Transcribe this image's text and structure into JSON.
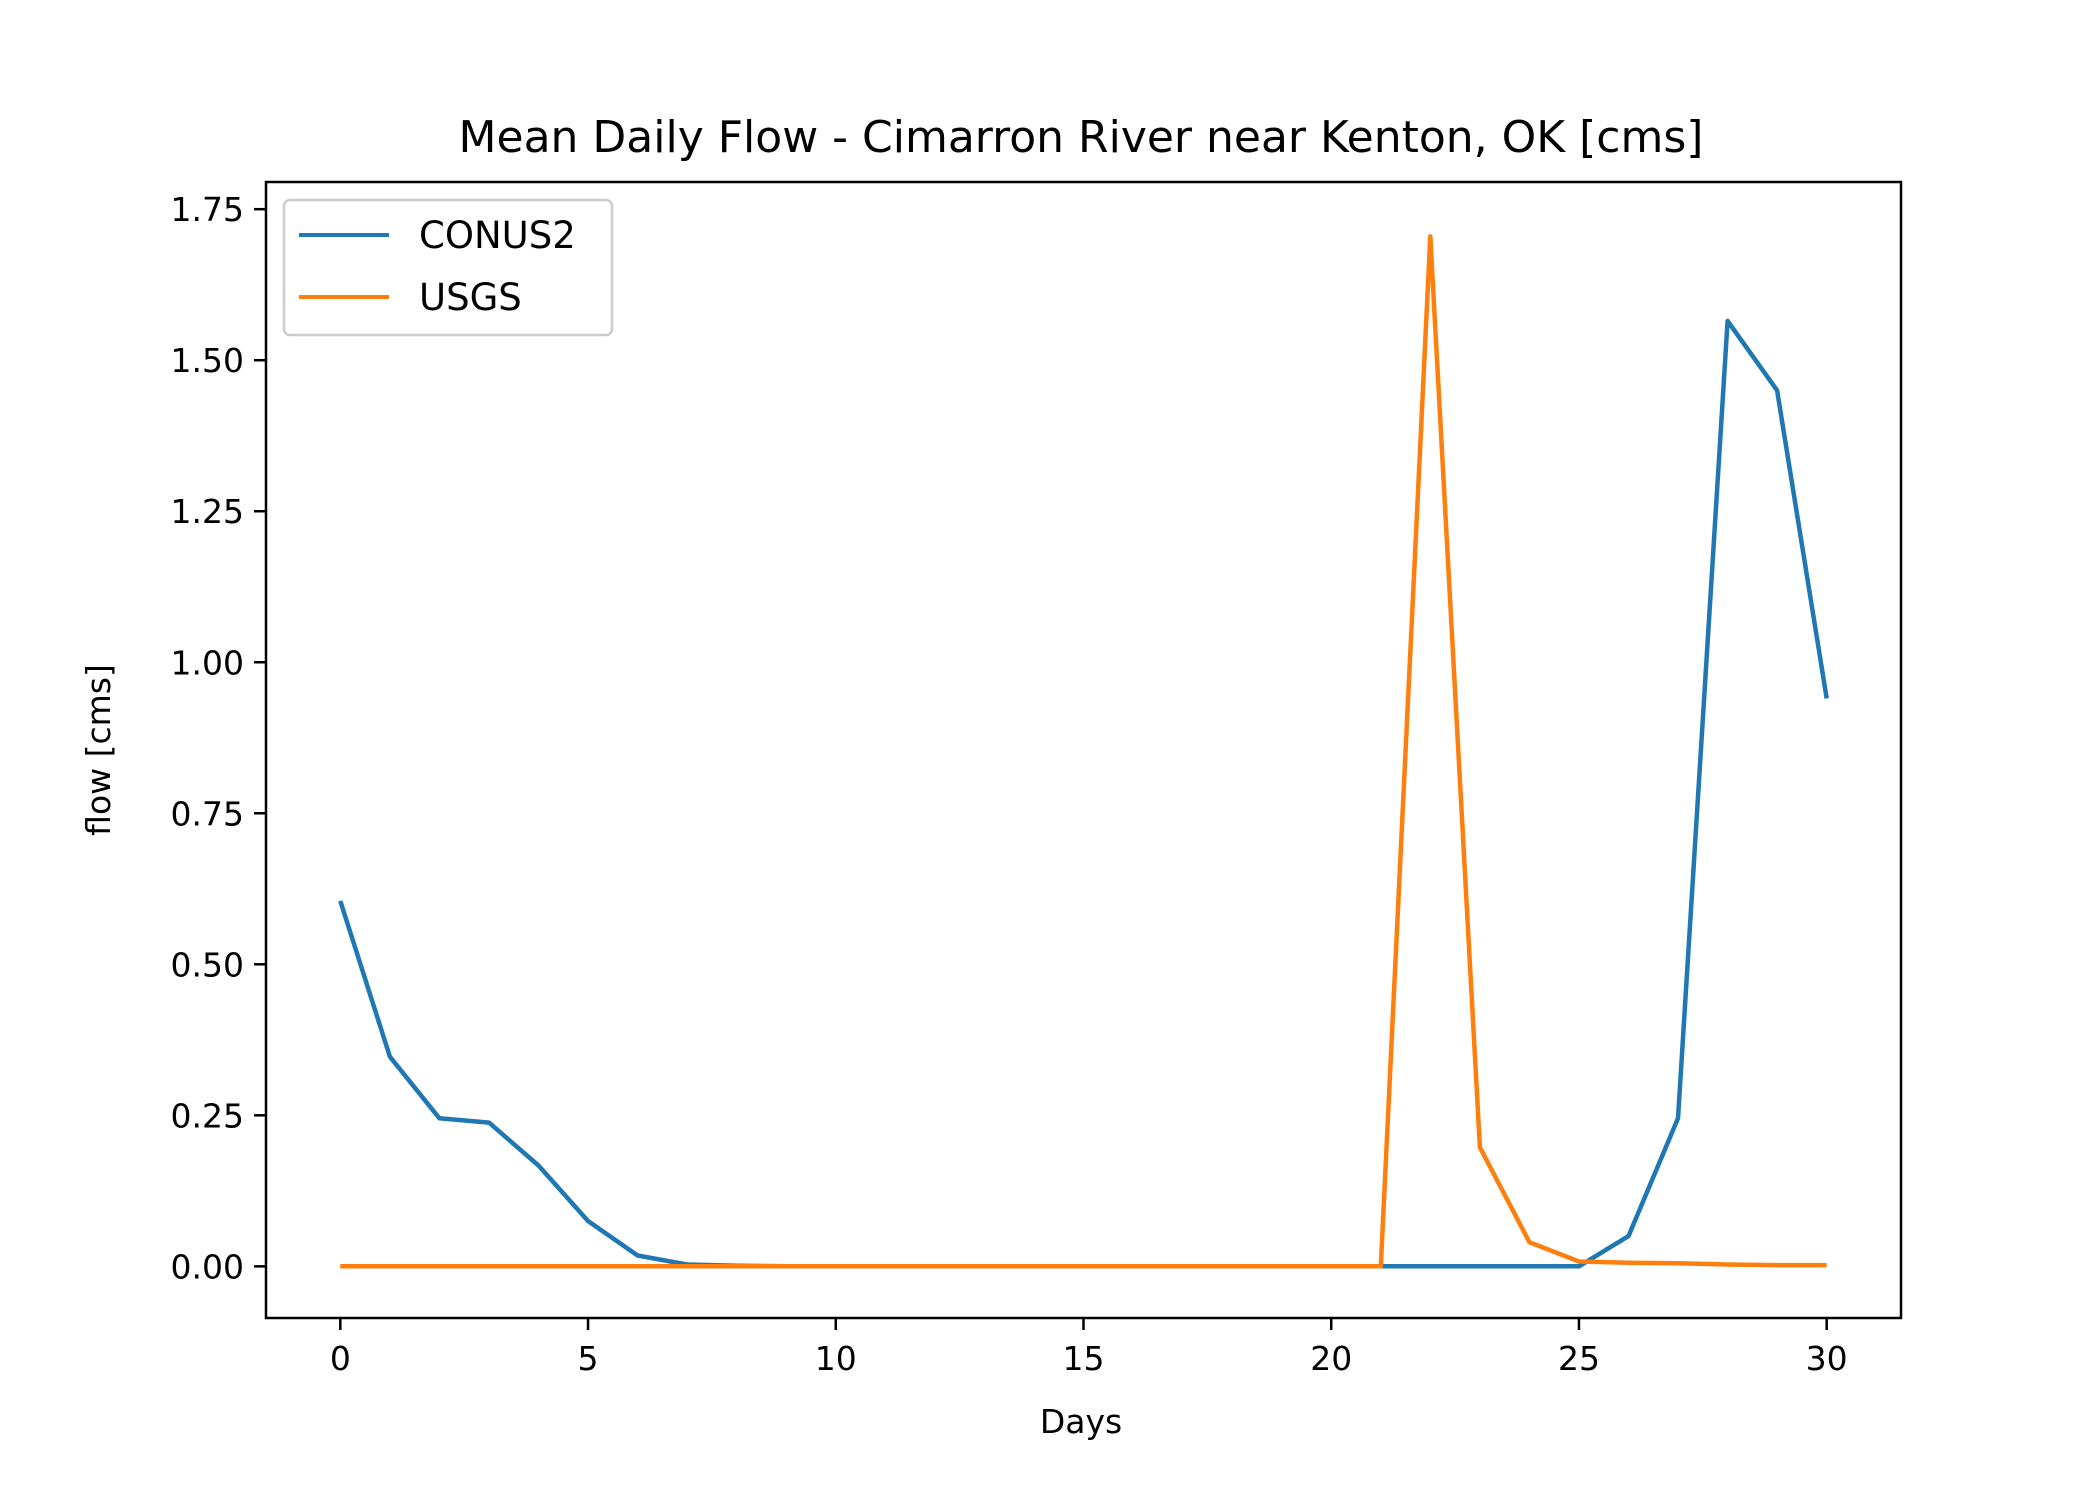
{
  "chart_data": {
    "type": "line",
    "title": "Mean Daily Flow - Cimarron River near Kenton, OK [cms]",
    "xlabel": "Days",
    "ylabel": "flow [cms]",
    "xlim": [
      -1.5,
      31.5
    ],
    "ylim": [
      -0.0855,
      1.795
    ],
    "xticks": [
      0,
      5,
      10,
      15,
      20,
      25,
      30
    ],
    "yticks": [
      0.0,
      0.25,
      0.5,
      0.75,
      1.0,
      1.25,
      1.5,
      1.75
    ],
    "xtick_labels": [
      "0",
      "5",
      "10",
      "15",
      "20",
      "25",
      "30"
    ],
    "ytick_labels": [
      "0.00",
      "0.25",
      "0.50",
      "0.75",
      "1.00",
      "1.25",
      "1.50",
      "1.75"
    ],
    "grid": false,
    "legend": "upper-left",
    "x": [
      0,
      1,
      2,
      3,
      4,
      5,
      6,
      7,
      8,
      9,
      10,
      11,
      12,
      13,
      14,
      15,
      16,
      17,
      18,
      19,
      20,
      21,
      22,
      23,
      24,
      25,
      26,
      27,
      28,
      29,
      30
    ],
    "series": [
      {
        "name": "CONUS2",
        "color": "#1f77b4",
        "values": [
          0.605,
          0.347,
          0.245,
          0.238,
          0.167,
          0.075,
          0.018,
          0.003,
          0.001,
          0.0,
          0.0,
          0.0,
          0.0,
          0.0,
          0.0,
          0.0,
          0.0,
          0.0,
          0.0,
          0.0,
          0.0,
          0.0,
          0.0,
          0.0,
          0.0,
          0.0,
          0.05,
          0.245,
          1.565,
          1.45,
          0.94
        ]
      },
      {
        "name": "USGS",
        "color": "#ff7f0e",
        "values": [
          0.0,
          0.0,
          0.0,
          0.0,
          0.0,
          0.0,
          0.0,
          0.0,
          0.0,
          0.0,
          0.0,
          0.0,
          0.0,
          0.0,
          0.0,
          0.0,
          0.0,
          0.0,
          0.0,
          0.0,
          0.0,
          0.0,
          1.705,
          0.197,
          0.04,
          0.008,
          0.006,
          0.005,
          0.003,
          0.002,
          0.002
        ]
      }
    ]
  }
}
